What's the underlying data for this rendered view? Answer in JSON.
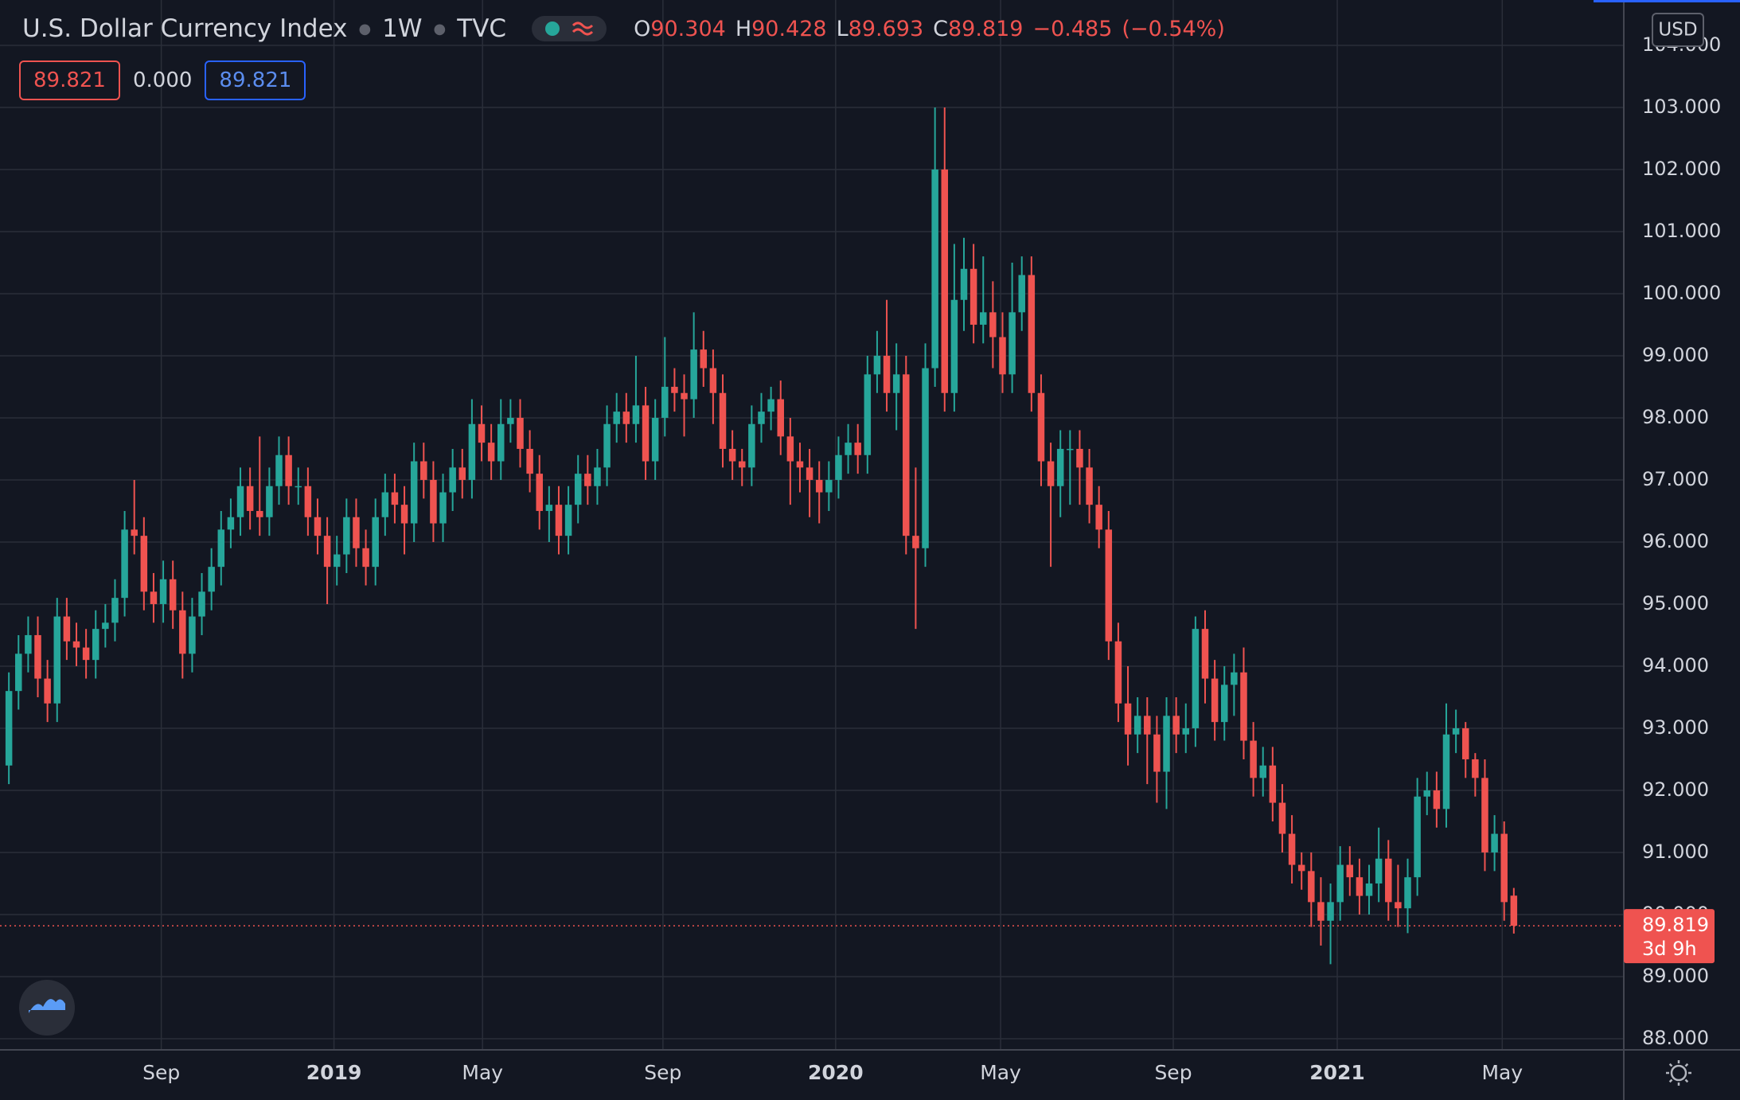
{
  "chart_data": {
    "type": "candlestick",
    "title": "U.S. Dollar Currency Index",
    "interval": "1W",
    "source": "TVC",
    "legend": [
      {
        "label": "O",
        "value": 90.304
      },
      {
        "label": "H",
        "value": 90.428
      },
      {
        "label": "L",
        "value": 89.693
      },
      {
        "label": "C",
        "value": 89.819
      }
    ],
    "change": "−0.485",
    "change_percent": "(−0.54%)",
    "indicator_values": [
      "89.821",
      "0.000",
      "89.821"
    ],
    "currency": "USD",
    "last_price": 89.819,
    "countdown": "3d 9h",
    "up_color": "#26a69a",
    "down_color": "#ef5350",
    "grid": true,
    "xlim": [
      -0.92,
      167.4
    ],
    "xticks": [
      {
        "value": 15.8,
        "label": "Sep"
      },
      {
        "value": 33.7,
        "label": "2019"
      },
      {
        "value": 49.1,
        "label": "May"
      },
      {
        "value": 67.8,
        "label": "Sep"
      },
      {
        "value": 85.7,
        "label": "2020"
      },
      {
        "value": 102.8,
        "label": "May"
      },
      {
        "value": 120.7,
        "label": "Sep"
      },
      {
        "value": 137.7,
        "label": "2021"
      },
      {
        "value": 154.8,
        "label": "May"
      }
    ],
    "ylim": [
      87.82,
      104.73
    ],
    "yticks": [
      {
        "value": 88,
        "label": "88.000"
      },
      {
        "value": 89,
        "label": "89.000"
      },
      {
        "value": 90,
        "label": "90.000"
      },
      {
        "value": 91,
        "label": "91.000"
      },
      {
        "value": 92,
        "label": "92.000"
      },
      {
        "value": 93,
        "label": "93.000"
      },
      {
        "value": 94,
        "label": "94.000"
      },
      {
        "value": 95,
        "label": "95.000"
      },
      {
        "value": 96,
        "label": "96.000"
      },
      {
        "value": 97,
        "label": "97.000"
      },
      {
        "value": 98,
        "label": "98.000"
      },
      {
        "value": 99,
        "label": "99.000"
      },
      {
        "value": 100,
        "label": "100.000"
      },
      {
        "value": 101,
        "label": "101.000"
      },
      {
        "value": 102,
        "label": "102.000"
      },
      {
        "value": 103,
        "label": "103.000"
      },
      {
        "value": 104,
        "label": "104.000"
      }
    ],
    "open": [
      92.4,
      93.6,
      94.2,
      94.5,
      93.8,
      93.4,
      94.8,
      94.4,
      94.3,
      94.1,
      94.6,
      94.7,
      95.1,
      96.2,
      96.1,
      95.2,
      95.0,
      95.4,
      94.9,
      94.2,
      94.8,
      95.2,
      95.6,
      96.2,
      96.4,
      96.9,
      96.5,
      96.4,
      96.9,
      97.4,
      96.9,
      96.9,
      96.4,
      96.1,
      95.6,
      95.8,
      96.4,
      95.9,
      95.6,
      96.4,
      96.8,
      96.6,
      96.3,
      97.3,
      97.0,
      96.3,
      96.8,
      97.2,
      97.0,
      97.9,
      97.6,
      97.3,
      97.9,
      98.0,
      97.5,
      97.1,
      96.5,
      96.6,
      96.1,
      96.6,
      97.1,
      96.9,
      97.2,
      97.9,
      98.1,
      97.9,
      98.2,
      97.3,
      98.0,
      98.5,
      98.4,
      98.3,
      99.1,
      98.8,
      98.4,
      97.5,
      97.3,
      97.2,
      97.9,
      98.1,
      98.3,
      97.7,
      97.3,
      97.2,
      97.0,
      96.8,
      97.0,
      97.4,
      97.6,
      97.4,
      98.7,
      99.0,
      98.4,
      98.7,
      96.1,
      95.9,
      98.8,
      102.0,
      98.4,
      99.9,
      100.4,
      99.5,
      99.7,
      99.3,
      98.7,
      99.7,
      100.3,
      98.4,
      97.3,
      96.9,
      97.5,
      97.5,
      97.2,
      96.6,
      96.2,
      94.4,
      93.4,
      92.9,
      93.2,
      92.9,
      92.3,
      93.2,
      92.9,
      93.0,
      94.6,
      93.8,
      93.1,
      93.7,
      93.9,
      92.8,
      92.2,
      92.4,
      91.8,
      91.3,
      90.8,
      90.7,
      90.2,
      89.9,
      90.2,
      90.8,
      90.6,
      90.3,
      90.5,
      90.9,
      90.2,
      90.1,
      90.6,
      91.9,
      92.0,
      91.7,
      92.9,
      93.0,
      92.5,
      92.2,
      91.0,
      91.3,
      90.304
    ],
    "high": [
      93.9,
      94.5,
      94.8,
      94.8,
      94.1,
      95.1,
      95.1,
      94.7,
      94.6,
      94.9,
      95.0,
      95.4,
      96.5,
      97.0,
      96.4,
      95.5,
      95.7,
      95.7,
      95.2,
      95.1,
      95.5,
      95.9,
      96.5,
      96.7,
      97.2,
      97.2,
      97.7,
      97.2,
      97.7,
      97.7,
      97.2,
      97.2,
      96.7,
      96.4,
      96.1,
      96.7,
      96.7,
      96.2,
      96.7,
      97.1,
      97.1,
      96.9,
      97.6,
      97.6,
      97.3,
      97.1,
      97.5,
      97.5,
      98.3,
      98.2,
      97.9,
      98.3,
      98.3,
      98.3,
      97.8,
      97.4,
      96.9,
      96.9,
      96.9,
      97.4,
      97.4,
      97.5,
      98.2,
      98.4,
      98.4,
      99.0,
      98.5,
      98.3,
      99.3,
      98.8,
      98.7,
      99.7,
      99.4,
      99.1,
      98.7,
      97.8,
      97.5,
      98.2,
      98.4,
      98.5,
      98.6,
      98.0,
      97.6,
      97.5,
      97.3,
      97.3,
      97.7,
      97.9,
      97.9,
      99.0,
      99.4,
      99.9,
      99.2,
      99.0,
      97.2,
      99.2,
      103.0,
      103.0,
      100.8,
      100.9,
      100.8,
      100.6,
      100.2,
      99.7,
      100.5,
      100.6,
      100.6,
      98.7,
      97.6,
      97.8,
      97.8,
      97.8,
      97.5,
      96.9,
      96.5,
      94.7,
      94.0,
      93.5,
      93.5,
      93.2,
      93.5,
      93.5,
      93.4,
      94.8,
      94.9,
      94.1,
      94.0,
      94.2,
      94.3,
      93.1,
      92.7,
      92.7,
      92.1,
      91.6,
      91.0,
      91.0,
      90.6,
      90.5,
      91.1,
      91.1,
      90.9,
      90.8,
      91.4,
      91.2,
      90.8,
      90.9,
      92.2,
      92.3,
      92.3,
      93.4,
      93.3,
      93.1,
      92.6,
      92.5,
      91.6,
      91.5,
      90.428
    ],
    "low": [
      92.1,
      93.3,
      93.9,
      93.5,
      93.1,
      93.1,
      94.1,
      94.0,
      93.8,
      93.8,
      94.3,
      94.4,
      94.8,
      95.8,
      94.9,
      94.7,
      94.7,
      94.6,
      93.8,
      93.9,
      94.5,
      94.9,
      95.3,
      95.9,
      96.1,
      96.2,
      96.1,
      96.1,
      96.6,
      96.6,
      96.6,
      96.1,
      95.8,
      95.0,
      95.3,
      95.5,
      95.6,
      95.3,
      95.3,
      96.1,
      96.3,
      95.8,
      96.0,
      96.7,
      96.0,
      96.0,
      96.5,
      96.7,
      96.7,
      97.3,
      97.0,
      97.0,
      97.6,
      97.2,
      96.8,
      96.2,
      96.0,
      95.8,
      95.8,
      96.3,
      96.6,
      96.6,
      96.9,
      97.6,
      97.6,
      97.6,
      97.0,
      97.0,
      97.7,
      98.1,
      97.7,
      98.0,
      98.5,
      97.9,
      97.2,
      97.0,
      96.9,
      96.9,
      97.6,
      97.8,
      97.4,
      96.6,
      96.8,
      96.4,
      96.3,
      96.5,
      96.7,
      97.1,
      97.1,
      97.1,
      98.4,
      98.1,
      97.8,
      95.8,
      94.6,
      95.6,
      98.5,
      98.1,
      98.1,
      99.4,
      99.2,
      99.2,
      98.8,
      98.4,
      98.4,
      99.4,
      98.1,
      96.9,
      95.6,
      96.4,
      96.6,
      96.6,
      96.3,
      95.9,
      94.1,
      93.1,
      92.4,
      92.6,
      92.1,
      91.8,
      91.7,
      92.6,
      92.6,
      92.7,
      93.4,
      92.8,
      92.8,
      93.2,
      92.5,
      91.9,
      91.9,
      91.5,
      91.0,
      90.5,
      90.4,
      89.8,
      89.5,
      89.2,
      89.9,
      90.3,
      90.0,
      90.0,
      90.2,
      89.9,
      89.8,
      89.7,
      90.3,
      91.6,
      91.4,
      91.4,
      92.6,
      92.2,
      91.9,
      90.7,
      90.7,
      89.9,
      89.693
    ],
    "close": [
      93.6,
      94.2,
      94.5,
      93.8,
      93.4,
      94.8,
      94.4,
      94.3,
      94.1,
      94.6,
      94.7,
      95.1,
      96.2,
      96.1,
      95.2,
      95.0,
      95.4,
      94.9,
      94.2,
      94.8,
      95.2,
      95.6,
      96.2,
      96.4,
      96.9,
      96.5,
      96.4,
      96.9,
      97.4,
      96.9,
      96.9,
      96.4,
      96.1,
      95.6,
      95.8,
      96.4,
      95.9,
      95.6,
      96.4,
      96.8,
      96.6,
      96.3,
      97.3,
      97.0,
      96.3,
      96.8,
      97.2,
      97.0,
      97.9,
      97.6,
      97.3,
      97.9,
      98.0,
      97.5,
      97.1,
      96.5,
      96.6,
      96.1,
      96.6,
      97.1,
      96.9,
      97.2,
      97.9,
      98.1,
      97.9,
      98.2,
      97.3,
      98.0,
      98.5,
      98.4,
      98.3,
      99.1,
      98.8,
      98.4,
      97.5,
      97.3,
      97.2,
      97.9,
      98.1,
      98.3,
      97.7,
      97.3,
      97.2,
      97.0,
      96.8,
      97.0,
      97.4,
      97.6,
      97.4,
      98.7,
      99.0,
      98.4,
      98.7,
      96.1,
      95.9,
      98.8,
      102.0,
      98.4,
      99.9,
      100.4,
      99.5,
      99.7,
      99.3,
      98.7,
      99.7,
      100.3,
      98.4,
      97.3,
      96.9,
      97.5,
      97.5,
      97.2,
      96.6,
      96.2,
      94.4,
      93.4,
      92.9,
      93.2,
      92.9,
      92.3,
      93.2,
      92.9,
      93.0,
      94.6,
      93.8,
      93.1,
      93.7,
      93.9,
      92.8,
      92.2,
      92.4,
      91.8,
      91.3,
      90.8,
      90.7,
      90.2,
      89.9,
      90.2,
      90.8,
      90.6,
      90.3,
      90.5,
      90.9,
      90.2,
      90.1,
      90.6,
      91.9,
      92.0,
      91.7,
      92.9,
      93.0,
      92.5,
      92.2,
      91.0,
      91.3,
      90.2,
      89.819
    ]
  }
}
